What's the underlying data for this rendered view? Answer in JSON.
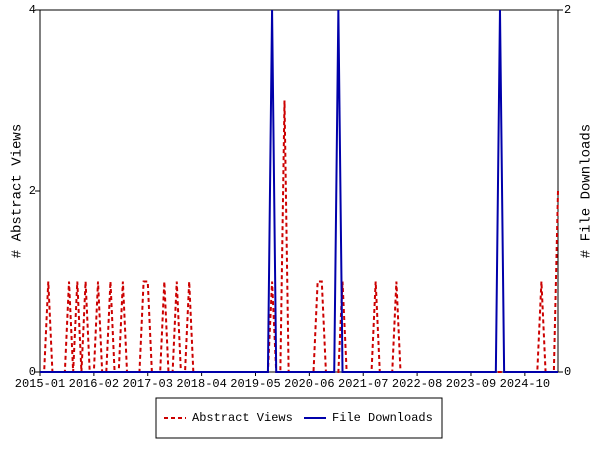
{
  "chart_data": {
    "type": "line",
    "y_label": "# Abstract Views",
    "y2_label": "# File Downloads",
    "categories": [
      "2015-01",
      null,
      null,
      null,
      null,
      null,
      null,
      null,
      null,
      null,
      null,
      null,
      null,
      "2016-02",
      null,
      null,
      null,
      null,
      null,
      null,
      null,
      null,
      null,
      null,
      null,
      null,
      "2017-03",
      null,
      null,
      null,
      null,
      null,
      null,
      null,
      null,
      null,
      null,
      null,
      null,
      "2018-04",
      null,
      null,
      null,
      null,
      null,
      null,
      null,
      null,
      null,
      null,
      null,
      null,
      "2019-05",
      null,
      null,
      null,
      null,
      null,
      null,
      null,
      null,
      null,
      null,
      null,
      null,
      "2020-06",
      null,
      null,
      null,
      null,
      null,
      null,
      null,
      null,
      null,
      null,
      null,
      null,
      "2021-07",
      null,
      null,
      null,
      null,
      null,
      null,
      null,
      null,
      null,
      null,
      null,
      null,
      "2022-08",
      null,
      null,
      null,
      null,
      null,
      null,
      null,
      null,
      null,
      null,
      null,
      null,
      "2023-09",
      null,
      null,
      null,
      null,
      null,
      null,
      null,
      null,
      null,
      null,
      null,
      null,
      "2024-10",
      null,
      null,
      null,
      null,
      null,
      null,
      null,
      null
    ],
    "series": [
      {
        "name": "Abstract Views",
        "color": "#cc0000",
        "dashed": true,
        "axis": "y",
        "values": [
          0,
          0,
          1,
          0,
          0,
          0,
          0,
          1,
          0,
          1,
          0,
          1,
          0,
          0,
          1,
          0,
          0,
          1,
          0,
          0,
          1,
          0,
          0,
          0,
          0,
          1,
          1,
          0,
          0,
          0,
          1,
          0,
          0,
          1,
          0,
          0,
          1,
          0,
          0,
          0,
          0,
          0,
          0,
          0,
          0,
          0,
          0,
          0,
          0,
          0,
          0,
          0,
          0,
          0,
          0,
          0,
          1,
          0,
          0,
          3,
          0,
          0,
          0,
          0,
          0,
          0,
          0,
          1,
          1,
          0,
          0,
          0,
          0,
          1,
          0,
          0,
          0,
          0,
          0,
          0,
          0,
          1,
          0,
          0,
          0,
          0,
          1,
          0,
          0,
          0,
          0,
          0,
          0,
          0,
          0,
          0,
          0,
          0,
          0,
          0,
          0,
          0,
          0,
          0,
          0,
          0,
          0,
          0,
          0,
          0,
          0,
          0,
          0,
          0,
          0,
          0,
          0,
          0,
          0,
          0,
          0,
          1,
          0,
          0,
          0,
          2
        ]
      },
      {
        "name": "File Downloads",
        "color": "#0000aa",
        "dashed": false,
        "axis": "y2",
        "values": [
          0,
          0,
          0,
          0,
          0,
          0,
          0,
          0,
          0,
          0,
          0,
          0,
          0,
          0,
          0,
          0,
          0,
          0,
          0,
          0,
          0,
          0,
          0,
          0,
          0,
          0,
          0,
          0,
          0,
          0,
          0,
          0,
          0,
          0,
          0,
          0,
          0,
          0,
          0,
          0,
          0,
          0,
          0,
          0,
          0,
          0,
          0,
          0,
          0,
          0,
          0,
          0,
          0,
          0,
          0,
          0,
          2,
          0,
          0,
          0,
          0,
          0,
          0,
          0,
          0,
          0,
          0,
          0,
          0,
          0,
          0,
          0,
          2,
          0,
          0,
          0,
          0,
          0,
          0,
          0,
          0,
          0,
          0,
          0,
          0,
          0,
          0,
          0,
          0,
          0,
          0,
          0,
          0,
          0,
          0,
          0,
          0,
          0,
          0,
          0,
          0,
          0,
          0,
          0,
          0,
          0,
          0,
          0,
          0,
          0,
          0,
          2,
          0,
          0,
          0,
          0,
          0,
          0,
          0,
          0,
          0,
          0,
          0,
          0,
          0,
          0
        ]
      }
    ],
    "ylim": [
      0,
      4
    ],
    "yticks": [
      0,
      2,
      4
    ],
    "y2lim": [
      0,
      2
    ],
    "y2ticks": [
      0,
      2
    ],
    "legend": "bottom"
  }
}
